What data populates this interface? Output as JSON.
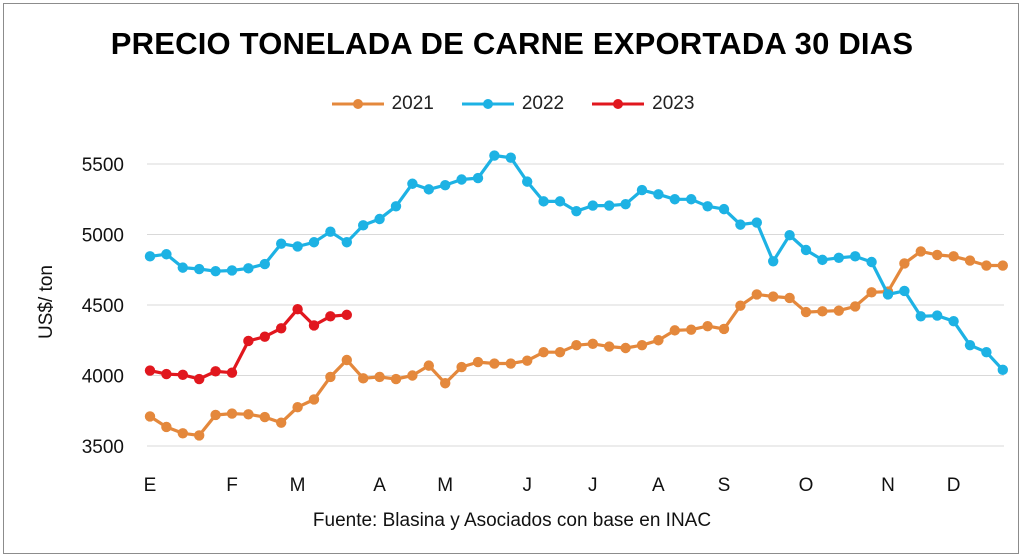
{
  "chart_data": {
    "type": "line",
    "title": "PRECIO TONELADA DE CARNE EXPORTADA 30 DIAS",
    "ylabel": "US$/ ton",
    "xlabel": "",
    "source": "Fuente: Blasina y Asociados con base en INAC",
    "ylim": [
      3500,
      5500
    ],
    "yticks": [
      3500,
      4000,
      4500,
      5000,
      5500
    ],
    "xticks": [
      {
        "label": "E",
        "week": 1
      },
      {
        "label": "F",
        "week": 6
      },
      {
        "label": "M",
        "week": 10
      },
      {
        "label": "A",
        "week": 15
      },
      {
        "label": "M",
        "week": 19
      },
      {
        "label": "J",
        "week": 24
      },
      {
        "label": "J",
        "week": 28
      },
      {
        "label": "A",
        "week": 32
      },
      {
        "label": "S",
        "week": 36
      },
      {
        "label": "O",
        "week": 41
      },
      {
        "label": "N",
        "week": 46
      },
      {
        "label": "D",
        "week": 50
      }
    ],
    "grid": true,
    "legend_position": "top",
    "series": [
      {
        "name": "2021",
        "color": "#E4883C",
        "values": [
          3710,
          3635,
          3590,
          3575,
          3720,
          3730,
          3725,
          3705,
          3665,
          3775,
          3830,
          3990,
          4110,
          3980,
          3990,
          3975,
          4000,
          4070,
          3945,
          4060,
          4095,
          4085,
          4085,
          4105,
          4165,
          4165,
          4215,
          4225,
          4205,
          4195,
          4215,
          4250,
          4320,
          4325,
          4350,
          4330,
          4495,
          4575,
          4560,
          4550,
          4450,
          4455,
          4460,
          4490,
          4590,
          4595,
          4795,
          4880,
          4855,
          4845,
          4815,
          4780,
          4780
        ]
      },
      {
        "name": "2022",
        "color": "#1DB2E4",
        "values": [
          4845,
          4860,
          4765,
          4755,
          4740,
          4745,
          4760,
          4790,
          4935,
          4915,
          4945,
          5020,
          4945,
          5065,
          5110,
          5200,
          5360,
          5320,
          5350,
          5390,
          5400,
          5560,
          5545,
          5375,
          5235,
          5235,
          5165,
          5205,
          5205,
          5215,
          5315,
          5285,
          5250,
          5250,
          5200,
          5180,
          5070,
          5085,
          4810,
          4995,
          4890,
          4820,
          4835,
          4845,
          4805,
          4575,
          4600,
          4420,
          4425,
          4385,
          4215,
          4165,
          4040
        ]
      },
      {
        "name": "2023",
        "color": "#E1171E",
        "values": [
          4035,
          4010,
          4005,
          3975,
          4030,
          4020,
          4245,
          4275,
          4335,
          4470,
          4355,
          4420,
          4430
        ]
      }
    ]
  }
}
